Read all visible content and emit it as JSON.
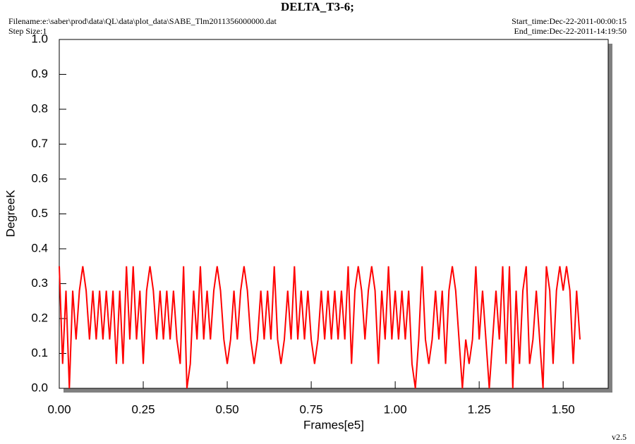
{
  "chart_data": {
    "type": "line",
    "title": "DELTA_T3-6;",
    "filename": "Filename:e:\\saber\\prod\\data\\QL\\data\\plot_data\\SABE_Tlm2011356000000.dat",
    "step_size": "Step Size:1",
    "start_time": "Start_time:Dec-22-2011-00:00:15",
    "end_time": "End_time:Dec-22-2011-14:19:50",
    "version": "v2.5",
    "xlabel": "Frames[e5]",
    "ylabel": "DegreeK",
    "color": "#ff0000",
    "xlim": [
      0,
      1.634
    ],
    "ylim": [
      0,
      1.0
    ],
    "xticks": [
      {
        "value": 0,
        "label": "0.00"
      },
      0.25,
      {
        "value": 0.5,
        "label": "0.50"
      },
      0.75,
      {
        "value": 1.0,
        "label": "1.00"
      },
      1.25,
      {
        "value": 1.5,
        "label": "1.50"
      }
    ],
    "yticks": [
      {
        "value": 0,
        "label": "0.0"
      },
      0.1,
      0.2,
      0.3,
      0.4,
      0.5,
      0.6,
      0.7,
      0.8,
      0.9,
      {
        "value": 1.0,
        "label": "1.0"
      }
    ],
    "x": [
      0,
      0.01,
      0.02,
      0.03,
      0.04,
      0.05,
      0.06,
      0.07,
      0.08,
      0.09,
      0.1,
      0.11,
      0.12,
      0.13,
      0.14,
      0.15,
      0.16,
      0.17,
      0.18,
      0.19,
      0.2,
      0.21,
      0.22,
      0.23,
      0.24,
      0.25,
      0.26,
      0.27,
      0.28,
      0.29,
      0.3,
      0.31,
      0.32,
      0.33,
      0.34,
      0.35,
      0.36,
      0.37,
      0.38,
      0.39,
      0.4,
      0.41,
      0.42,
      0.43,
      0.44,
      0.45,
      0.46,
      0.47,
      0.48,
      0.49,
      0.5,
      0.51,
      0.52,
      0.53,
      0.54,
      0.55,
      0.56,
      0.57,
      0.58,
      0.59,
      0.6,
      0.61,
      0.62,
      0.63,
      0.64,
      0.65,
      0.66,
      0.67,
      0.68,
      0.69,
      0.7,
      0.71,
      0.72,
      0.73,
      0.74,
      0.75,
      0.76,
      0.77,
      0.78,
      0.79,
      0.8,
      0.81,
      0.82,
      0.83,
      0.84,
      0.85,
      0.86,
      0.87,
      0.88,
      0.89,
      0.9,
      0.91,
      0.92,
      0.93,
      0.94,
      0.95,
      0.96,
      0.97,
      0.98,
      0.99,
      1.0,
      1.01,
      1.02,
      1.03,
      1.04,
      1.05,
      1.06,
      1.07,
      1.08,
      1.09,
      1.1,
      1.11,
      1.12,
      1.13,
      1.14,
      1.15,
      1.16,
      1.17,
      1.18,
      1.19,
      1.2,
      1.21,
      1.22,
      1.23,
      1.24,
      1.25,
      1.26,
      1.27,
      1.28,
      1.29,
      1.3,
      1.31,
      1.32,
      1.33,
      1.34,
      1.35,
      1.36,
      1.37,
      1.38,
      1.39,
      1.4,
      1.41,
      1.42,
      1.43,
      1.44,
      1.45,
      1.46,
      1.47,
      1.48,
      1.49,
      1.5,
      1.51,
      1.52,
      1.53,
      1.54,
      1.55
    ],
    "values": [
      0.35,
      0.07,
      0.28,
      0,
      0.28,
      0.14,
      0.28,
      0.35,
      0.28,
      0.14,
      0.28,
      0.14,
      0.28,
      0.14,
      0.28,
      0.14,
      0.28,
      0.07,
      0.28,
      0.07,
      0.35,
      0.14,
      0.35,
      0.14,
      0.28,
      0.07,
      0.28,
      0.35,
      0.28,
      0.14,
      0.28,
      0.14,
      0.28,
      0.14,
      0.28,
      0.14,
      0.07,
      0.35,
      0,
      0.07,
      0.28,
      0.14,
      0.35,
      0.14,
      0.28,
      0.14,
      0.28,
      0.35,
      0.28,
      0.14,
      0.07,
      0.14,
      0.28,
      0.14,
      0.28,
      0.35,
      0.28,
      0.14,
      0.07,
      0.14,
      0.28,
      0.14,
      0.28,
      0.14,
      0.35,
      0.14,
      0.07,
      0.14,
      0.28,
      0.14,
      0.35,
      0.14,
      0.28,
      0.14,
      0.28,
      0.14,
      0.07,
      0.14,
      0.28,
      0.14,
      0.28,
      0.14,
      0.28,
      0.14,
      0.28,
      0.14,
      0.35,
      0.07,
      0.28,
      0.35,
      0.28,
      0.14,
      0.28,
      0.35,
      0.28,
      0.07,
      0.28,
      0.14,
      0.35,
      0.14,
      0.28,
      0.14,
      0.28,
      0.14,
      0.28,
      0.07,
      0,
      0.14,
      0.35,
      0.14,
      0.07,
      0.14,
      0.28,
      0.14,
      0.28,
      0.07,
      0.28,
      0.35,
      0.28,
      0.14,
      0,
      0.14,
      0.07,
      0.14,
      0.35,
      0.14,
      0.28,
      0.14,
      0,
      0.14,
      0.28,
      0.14,
      0.35,
      0.07,
      0.35,
      0,
      0.28,
      0.07,
      0.28,
      0.35,
      0.07,
      0.14,
      0.28,
      0.14,
      0,
      0.35,
      0.28,
      0.07,
      0.28,
      0.35,
      0.28,
      0.35,
      0.28,
      0.07,
      0.28,
      0.14
    ]
  }
}
